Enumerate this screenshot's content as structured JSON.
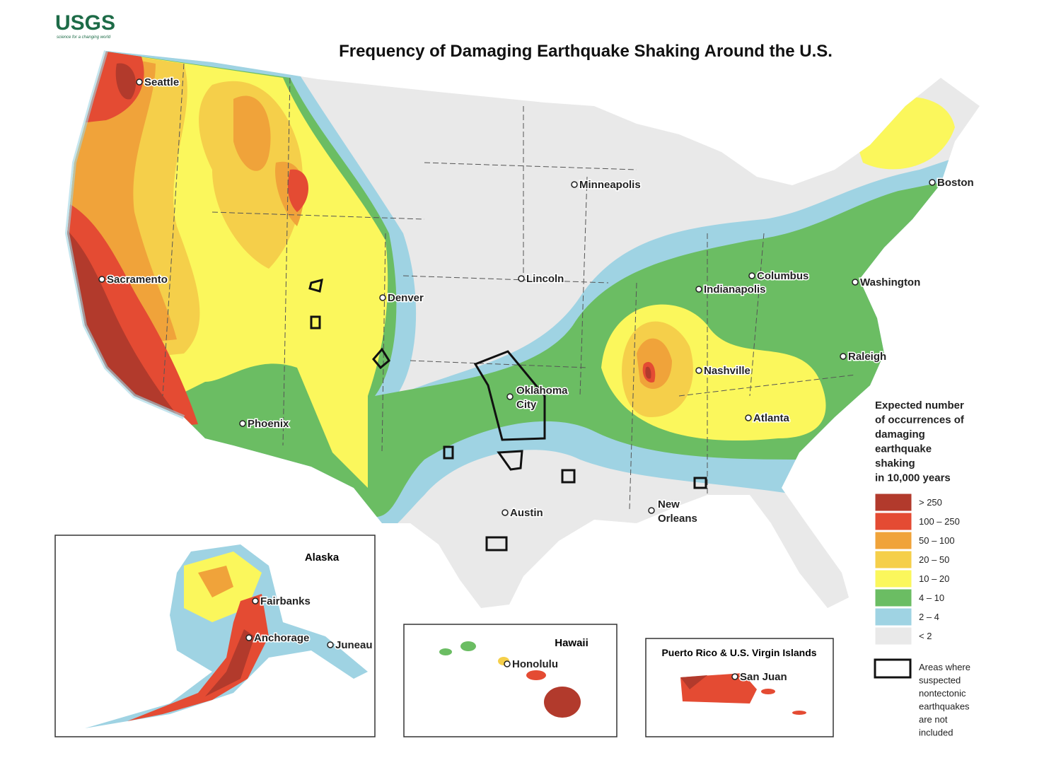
{
  "header": {
    "logo": "USGS",
    "tagline": "science for a changing world",
    "title": "Frequency of Damaging Earthquake Shaking Around the U.S."
  },
  "cities": [
    "Seattle",
    "Sacramento",
    "Phoenix",
    "Denver",
    "Minneapolis",
    "Lincoln",
    [
      "Oklahoma",
      "City"
    ],
    "Austin",
    [
      "New",
      "Orleans"
    ],
    "Nashville",
    "Atlanta",
    "Indianapolis",
    "Columbus",
    "Washington",
    "Raleigh",
    "Boston"
  ],
  "insets": {
    "alaska": {
      "title": "Alaska",
      "cities": [
        "Fairbanks",
        "Anchorage",
        "Juneau"
      ]
    },
    "hawaii": {
      "title": "Hawaii",
      "cities": [
        "Honolulu"
      ]
    },
    "puerto_rico": {
      "title": "Puerto Rico & U.S. Virgin Islands",
      "cities": [
        "San Juan"
      ]
    }
  },
  "legend": {
    "title": [
      "Expected number",
      "of occurrences of",
      "damaging",
      "earthquake",
      "shaking",
      "in 10,000 years"
    ],
    "items": [
      {
        "label": "> 250",
        "color": "#b23a2c"
      },
      {
        "label": "100 – 250",
        "color": "#e44b33"
      },
      {
        "label": "50 – 100",
        "color": "#f0a33a"
      },
      {
        "label": "20 – 50",
        "color": "#f5cf4a"
      },
      {
        "label": "10 – 20",
        "color": "#fbf75c"
      },
      {
        "label": "4 – 10",
        "color": "#6bbd63"
      },
      {
        "label": "2 – 4",
        "color": "#9fd3e3"
      },
      {
        "label": "< 2",
        "color": "#e9e9e9"
      }
    ],
    "note": [
      "Areas where",
      "suspected",
      "nontectonic",
      "earthquakes",
      "are not",
      "included"
    ]
  }
}
